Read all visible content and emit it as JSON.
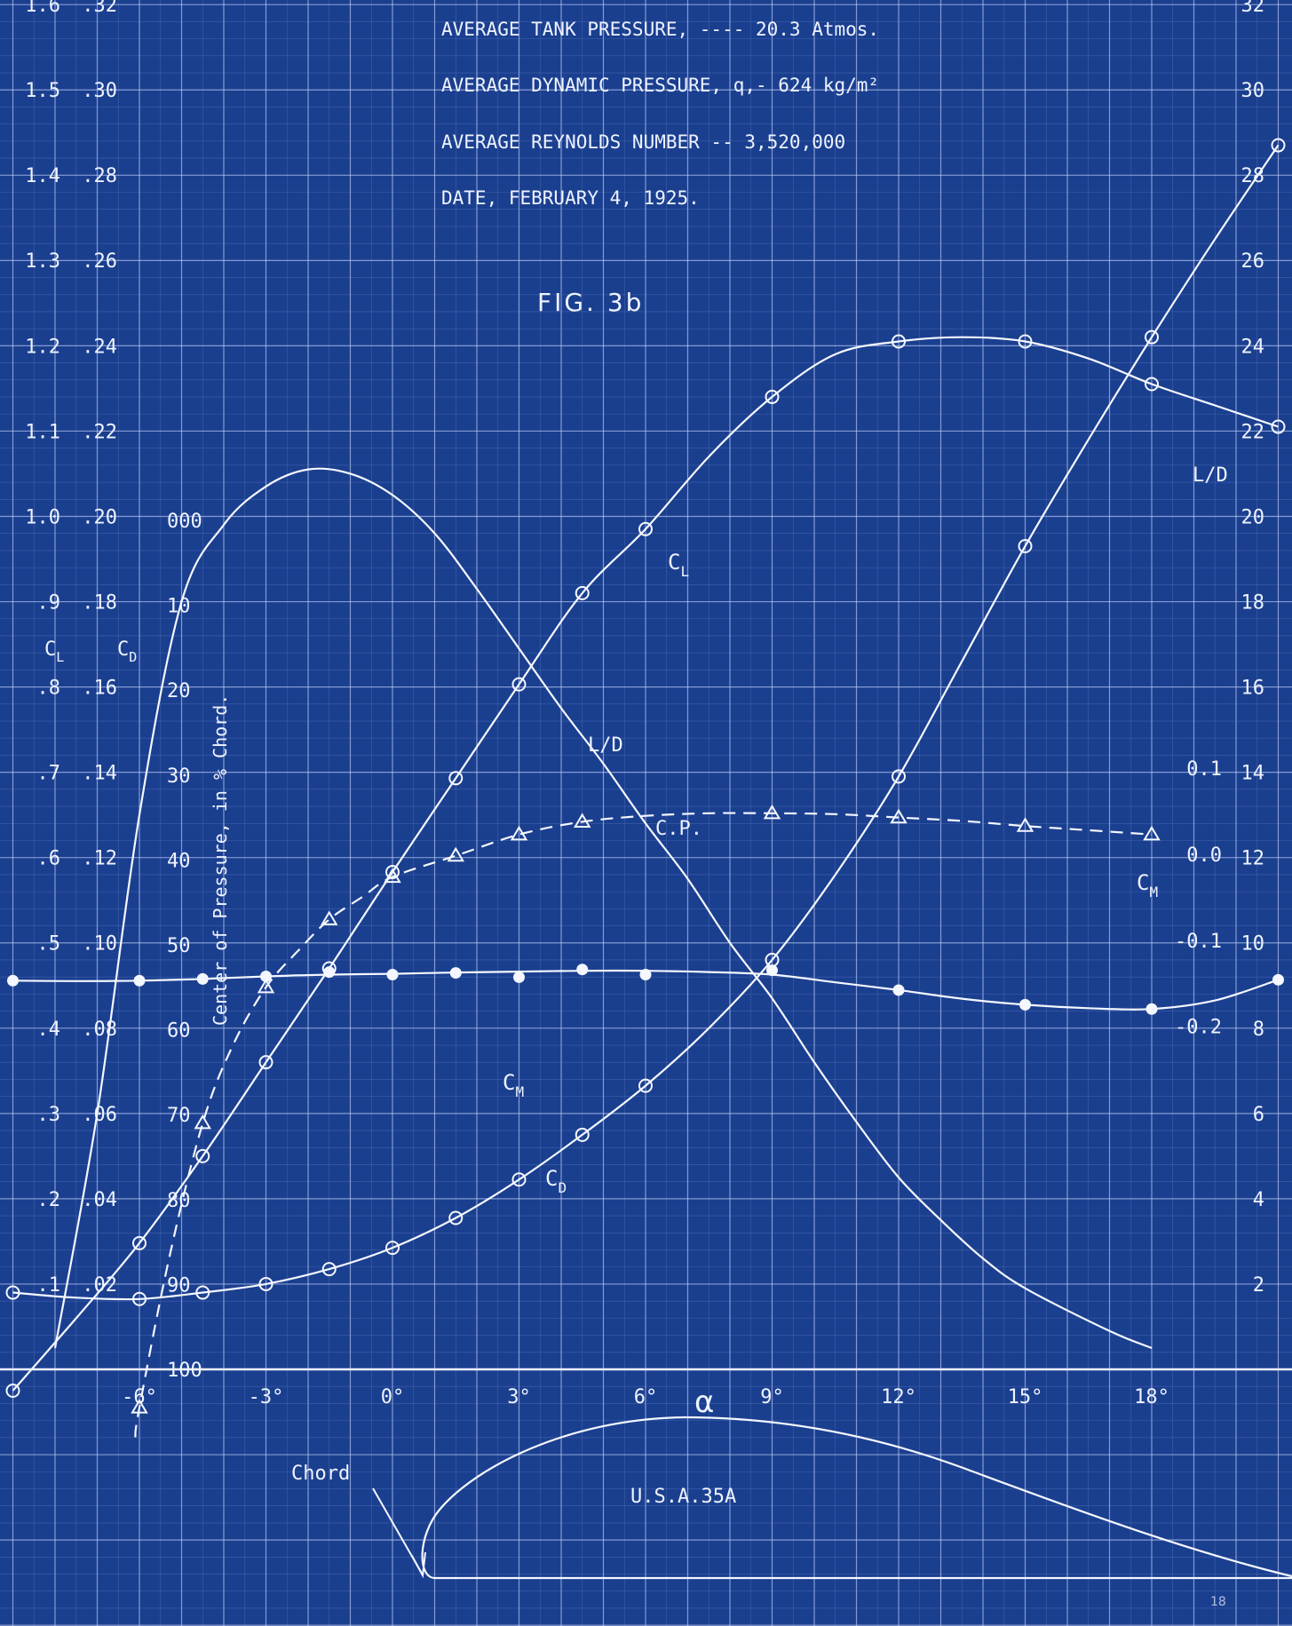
{
  "header": {
    "line1": "AVERAGE TANK PRESSURE, ---- 20.3 Atmos.",
    "line2": "AVERAGE DYNAMIC PRESSURE, q,- 624 kg/m²",
    "line3": "AVERAGE REYNOLDS NUMBER -- 3,520,000",
    "line4": "DATE, FEBRUARY 4, 1925."
  },
  "figure_label": "FIG. 3b",
  "airfoil_label": "U.S.A.35A",
  "chord_label": "Chord",
  "page_number": "18",
  "axis_labels": {
    "cl": "C",
    "cl_sub": "L",
    "cd": "C",
    "cd_sub": "D",
    "cp": "Center of Pressure, in % Chord.",
    "ld": "L/D",
    "alpha": "α",
    "cm": "C",
    "cm_sub": "M"
  },
  "curve_labels": {
    "cl": "C",
    "cl_sub": "L",
    "ld": "L/D",
    "cp": "C.P.",
    "cm": "C",
    "cm_sub": "M",
    "cd": "C",
    "cd_sub": "D"
  },
  "ticks": {
    "cl": [
      {
        "v": 1.6,
        "t": "1.6"
      },
      {
        "v": 1.5,
        "t": "1.5"
      },
      {
        "v": 1.4,
        "t": "1.4"
      },
      {
        "v": 1.3,
        "t": "1.3"
      },
      {
        "v": 1.2,
        "t": "1.2"
      },
      {
        "v": 1.1,
        "t": "1.1"
      },
      {
        "v": 1.0,
        "t": "1.0"
      },
      {
        "v": 0.9,
        "t": ".9"
      },
      {
        "v": 0.8,
        "t": ".8"
      },
      {
        "v": 0.7,
        "t": ".7"
      },
      {
        "v": 0.6,
        "t": ".6"
      },
      {
        "v": 0.5,
        "t": ".5"
      },
      {
        "v": 0.4,
        "t": ".4"
      },
      {
        "v": 0.3,
        "t": ".3"
      },
      {
        "v": 0.2,
        "t": ".2"
      },
      {
        "v": 0.1,
        "t": ".1"
      }
    ],
    "cd": [
      {
        "v": 0.32,
        "t": ".32"
      },
      {
        "v": 0.3,
        "t": ".30"
      },
      {
        "v": 0.28,
        "t": ".28"
      },
      {
        "v": 0.26,
        "t": ".26"
      },
      {
        "v": 0.24,
        "t": ".24"
      },
      {
        "v": 0.22,
        "t": ".22"
      },
      {
        "v": 0.2,
        "t": ".20"
      },
      {
        "v": 0.18,
        "t": ".18"
      },
      {
        "v": 0.16,
        "t": ".16"
      },
      {
        "v": 0.14,
        "t": ".14"
      },
      {
        "v": 0.12,
        "t": ".12"
      },
      {
        "v": 0.1,
        "t": ".10"
      },
      {
        "v": 0.08,
        "t": ".08"
      },
      {
        "v": 0.06,
        "t": ".06"
      },
      {
        "v": 0.04,
        "t": ".04"
      },
      {
        "v": 0.02,
        "t": ".02"
      }
    ],
    "cp": [
      {
        "v": 0,
        "t": "000"
      },
      {
        "v": 10,
        "t": "10"
      },
      {
        "v": 20,
        "t": "20"
      },
      {
        "v": 30,
        "t": "30"
      },
      {
        "v": 40,
        "t": "40"
      },
      {
        "v": 50,
        "t": "50"
      },
      {
        "v": 60,
        "t": "60"
      },
      {
        "v": 70,
        "t": "70"
      },
      {
        "v": 80,
        "t": "80"
      },
      {
        "v": 90,
        "t": "90"
      },
      {
        "v": 100,
        "t": "100"
      }
    ],
    "ld": [
      {
        "v": 32,
        "t": "32"
      },
      {
        "v": 30,
        "t": "30"
      },
      {
        "v": 28,
        "t": "28"
      },
      {
        "v": 26,
        "t": "26"
      },
      {
        "v": 24,
        "t": "24"
      },
      {
        "v": 22,
        "t": "22"
      },
      {
        "v": 20,
        "t": "20"
      },
      {
        "v": 18,
        "t": "18"
      },
      {
        "v": 16,
        "t": "16"
      },
      {
        "v": 14,
        "t": "14"
      },
      {
        "v": 12,
        "t": "12"
      },
      {
        "v": 10,
        "t": "10"
      },
      {
        "v": 8,
        "t": "8"
      },
      {
        "v": 6,
        "t": "6"
      },
      {
        "v": 4,
        "t": "4"
      },
      {
        "v": 2,
        "t": "2"
      }
    ],
    "cm": [
      {
        "v": 0.1,
        "t": "0.1"
      },
      {
        "v": 0.0,
        "t": "0.0"
      },
      {
        "v": -0.1,
        "t": "-0.1"
      },
      {
        "v": -0.2,
        "t": "-0.2"
      }
    ],
    "alpha": [
      {
        "v": -6,
        "t": "-6°"
      },
      {
        "v": -3,
        "t": "-3°"
      },
      {
        "v": 0,
        "t": "0°"
      },
      {
        "v": 3,
        "t": "3°"
      },
      {
        "v": 6,
        "t": "6°"
      },
      {
        "v": 9,
        "t": "9°"
      },
      {
        "v": 12,
        "t": "12°"
      },
      {
        "v": 15,
        "t": "15°"
      },
      {
        "v": 18,
        "t": "18°"
      }
    ]
  },
  "chart_data": {
    "type": "line",
    "title": "FIG. 3b",
    "x": {
      "label": "α",
      "unit": "degrees",
      "range": [
        -9,
        21
      ]
    },
    "axes": {
      "cl": {
        "range": [
          0,
          1.6
        ]
      },
      "cd": {
        "range": [
          0,
          0.32
        ]
      },
      "cp": {
        "range": [
          0,
          100
        ],
        "inverted": true
      },
      "ld": {
        "range": [
          0,
          32
        ]
      },
      "cm": {
        "range": [
          -0.25,
          0.15
        ]
      }
    },
    "grid": true,
    "series": [
      {
        "name": "CL",
        "axis": "cl",
        "marker": "circle",
        "line": "solid",
        "points": [
          [
            -9,
            -0.025
          ],
          [
            -6,
            0.148
          ],
          [
            -4.5,
            0.25
          ],
          [
            -3,
            0.36
          ],
          [
            -1.5,
            0.47
          ],
          [
            0,
            0.583
          ],
          [
            1.5,
            0.693
          ],
          [
            3,
            0.803
          ],
          [
            4.5,
            0.91
          ],
          [
            6,
            0.985
          ],
          [
            9,
            1.14
          ],
          [
            12,
            1.205
          ],
          [
            15,
            1.205
          ],
          [
            18,
            1.155
          ],
          [
            21,
            1.105
          ]
        ],
        "curve": [
          [
            -9,
            -0.025
          ],
          [
            -7.5,
            0.06
          ],
          [
            -6,
            0.148
          ],
          [
            -4.5,
            0.25
          ],
          [
            -3,
            0.36
          ],
          [
            -1.5,
            0.47
          ],
          [
            0,
            0.583
          ],
          [
            1.5,
            0.693
          ],
          [
            3,
            0.803
          ],
          [
            4.5,
            0.91
          ],
          [
            6,
            0.985
          ],
          [
            7.5,
            1.07
          ],
          [
            9,
            1.14
          ],
          [
            10.5,
            1.19
          ],
          [
            12,
            1.205
          ],
          [
            13.5,
            1.21
          ],
          [
            15,
            1.205
          ],
          [
            16.5,
            1.185
          ],
          [
            18,
            1.155
          ],
          [
            19.5,
            1.13
          ],
          [
            21,
            1.105
          ]
        ]
      },
      {
        "name": "CD",
        "axis": "cd",
        "marker": "circle",
        "line": "solid",
        "points": [
          [
            -9,
            0.018
          ],
          [
            -6,
            0.0165
          ],
          [
            -4.5,
            0.018
          ],
          [
            -3,
            0.02
          ],
          [
            -1.5,
            0.0235
          ],
          [
            0,
            0.0285
          ],
          [
            1.5,
            0.0355
          ],
          [
            3,
            0.0445
          ],
          [
            4.5,
            0.055
          ],
          [
            6,
            0.0665
          ],
          [
            9,
            0.096
          ],
          [
            12,
            0.139
          ],
          [
            15,
            0.193
          ],
          [
            18,
            0.242
          ],
          [
            21,
            0.287
          ]
        ],
        "curve": [
          [
            -9,
            0.018
          ],
          [
            -7.5,
            0.0168
          ],
          [
            -6,
            0.0165
          ],
          [
            -4.5,
            0.018
          ],
          [
            -3,
            0.02
          ],
          [
            -1.5,
            0.0235
          ],
          [
            0,
            0.0285
          ],
          [
            1.5,
            0.0355
          ],
          [
            3,
            0.0445
          ],
          [
            4.5,
            0.055
          ],
          [
            6,
            0.0665
          ],
          [
            7.5,
            0.08
          ],
          [
            9,
            0.096
          ],
          [
            10.5,
            0.116
          ],
          [
            12,
            0.139
          ],
          [
            13.5,
            0.166
          ],
          [
            15,
            0.193
          ],
          [
            16.5,
            0.218
          ],
          [
            18,
            0.242
          ],
          [
            19.5,
            0.265
          ],
          [
            21,
            0.287
          ]
        ]
      },
      {
        "name": "L/D",
        "axis": "ld",
        "marker": "none",
        "line": "solid",
        "points": [],
        "curve": [
          [
            -8,
            0.5
          ],
          [
            -7,
            6.0
          ],
          [
            -6,
            13.0
          ],
          [
            -5,
            18.0
          ],
          [
            -4,
            19.8
          ],
          [
            -3,
            20.7
          ],
          [
            -2,
            21.1
          ],
          [
            -1,
            21.0
          ],
          [
            0,
            20.5
          ],
          [
            1,
            19.6
          ],
          [
            2,
            18.3
          ],
          [
            3,
            16.9
          ],
          [
            4,
            15.5
          ],
          [
            5,
            14.2
          ],
          [
            6,
            12.8
          ],
          [
            7,
            11.5
          ],
          [
            8,
            10.0
          ],
          [
            9,
            8.7
          ],
          [
            10,
            7.2
          ],
          [
            11,
            5.8
          ],
          [
            12,
            4.5
          ],
          [
            13,
            3.5
          ],
          [
            14,
            2.6
          ],
          [
            15,
            1.9
          ],
          [
            17,
            0.9
          ],
          [
            18,
            0.5
          ]
        ]
      },
      {
        "name": "C.P.",
        "axis": "cp",
        "marker": "triangle",
        "line": "dashed",
        "points": [
          [
            -6,
            104.5
          ],
          [
            -4.5,
            71
          ],
          [
            -3,
            55
          ],
          [
            -1.5,
            47
          ],
          [
            0,
            42
          ],
          [
            1.5,
            39.5
          ],
          [
            3,
            37
          ],
          [
            4.5,
            35.5
          ],
          [
            9,
            34.5
          ],
          [
            12,
            35
          ],
          [
            15,
            36
          ],
          [
            18,
            37
          ]
        ],
        "curve": [
          [
            -6.1,
            108
          ],
          [
            -6,
            104.5
          ],
          [
            -5.3,
            87
          ],
          [
            -4.5,
            71
          ],
          [
            -3.8,
            62
          ],
          [
            -3,
            55
          ],
          [
            -2.2,
            50.5
          ],
          [
            -1.5,
            47
          ],
          [
            -0.7,
            44.3
          ],
          [
            0,
            42
          ],
          [
            1.5,
            39.5
          ],
          [
            3,
            37
          ],
          [
            4.5,
            35.5
          ],
          [
            6,
            34.8
          ],
          [
            7.5,
            34.5
          ],
          [
            9,
            34.5
          ],
          [
            10.5,
            34.6
          ],
          [
            12,
            35
          ],
          [
            13.5,
            35.4
          ],
          [
            15,
            36
          ],
          [
            16.5,
            36.5
          ],
          [
            18,
            37
          ]
        ]
      },
      {
        "name": "CM",
        "axis": "cm",
        "marker": "dot",
        "line": "solid",
        "points": [
          [
            -9,
            -0.147
          ],
          [
            -6,
            -0.147
          ],
          [
            -4.5,
            -0.145
          ],
          [
            -3,
            -0.142
          ],
          [
            -1.5,
            -0.137
          ],
          [
            0,
            -0.14
          ],
          [
            1.5,
            -0.138
          ],
          [
            3,
            -0.143
          ],
          [
            4.5,
            -0.134
          ],
          [
            6,
            -0.14
          ],
          [
            9,
            -0.135
          ],
          [
            12,
            -0.158
          ],
          [
            15,
            -0.175
          ],
          [
            18,
            -0.18
          ],
          [
            21,
            -0.146
          ]
        ],
        "curve": [
          [
            -9,
            -0.147
          ],
          [
            -7.5,
            -0.1475
          ],
          [
            -6,
            -0.147
          ],
          [
            -4.5,
            -0.145
          ],
          [
            -3,
            -0.142
          ],
          [
            -1.5,
            -0.14
          ],
          [
            0,
            -0.139
          ],
          [
            1.5,
            -0.1375
          ],
          [
            3,
            -0.1365
          ],
          [
            4.5,
            -0.1355
          ],
          [
            6,
            -0.1355
          ],
          [
            7.5,
            -0.137
          ],
          [
            9,
            -0.14
          ],
          [
            10.5,
            -0.149
          ],
          [
            12,
            -0.158
          ],
          [
            13.5,
            -0.168
          ],
          [
            15,
            -0.175
          ],
          [
            16.5,
            -0.179
          ],
          [
            18,
            -0.18
          ],
          [
            19.5,
            -0.17
          ],
          [
            21,
            -0.146
          ]
        ]
      }
    ]
  }
}
